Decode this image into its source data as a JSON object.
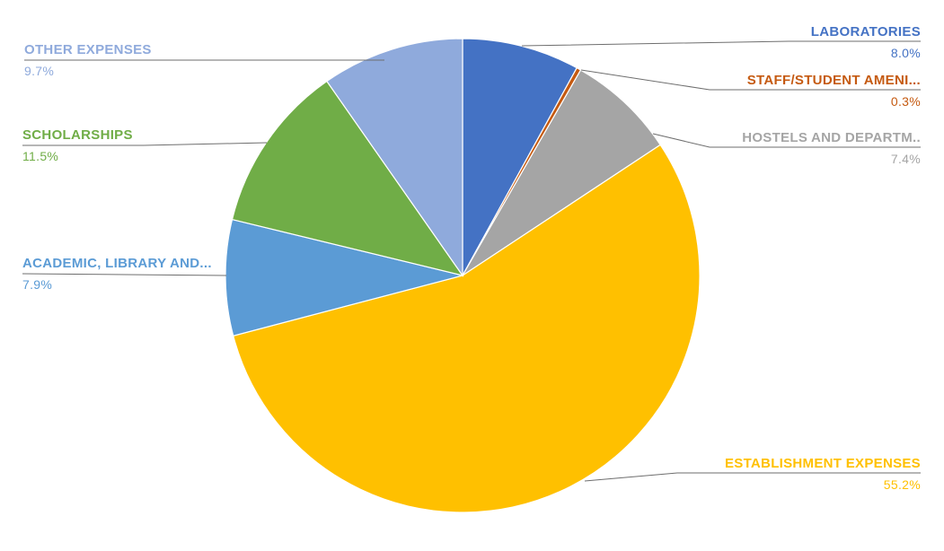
{
  "chart_data": {
    "type": "pie",
    "title": "",
    "direction": "clockwise",
    "start_angle_deg": 0,
    "background": "#FFFFFF",
    "leader_line_color": "#6E6E6E",
    "slice_border_color": "#FFFFFF",
    "legend_position": "none",
    "slices": [
      {
        "label": "LABORATORIES",
        "value": 8.0,
        "pct_text": "8.0%",
        "color": "#4472C4"
      },
      {
        "label": "STAFF/STUDENT AMENI...",
        "value": 0.3,
        "pct_text": "0.3%",
        "color": "#C55A11"
      },
      {
        "label": "HOSTELS AND DEPARTM..",
        "value": 7.4,
        "pct_text": "7.4%",
        "color": "#A5A5A5"
      },
      {
        "label": "ESTABLISHMENT EXPENSES",
        "value": 55.2,
        "pct_text": "55.2%",
        "color": "#FFC000"
      },
      {
        "label": "ACADEMIC, LIBRARY AND...",
        "value": 7.9,
        "pct_text": "7.9%",
        "color": "#5B9BD5"
      },
      {
        "label": "SCHOLARSHIPS",
        "value": 11.5,
        "pct_text": "11.5%",
        "color": "#70AD47"
      },
      {
        "label": "OTHER EXPENSES",
        "value": 9.7,
        "pct_text": "9.7%",
        "color": "#8FAADC"
      }
    ]
  }
}
